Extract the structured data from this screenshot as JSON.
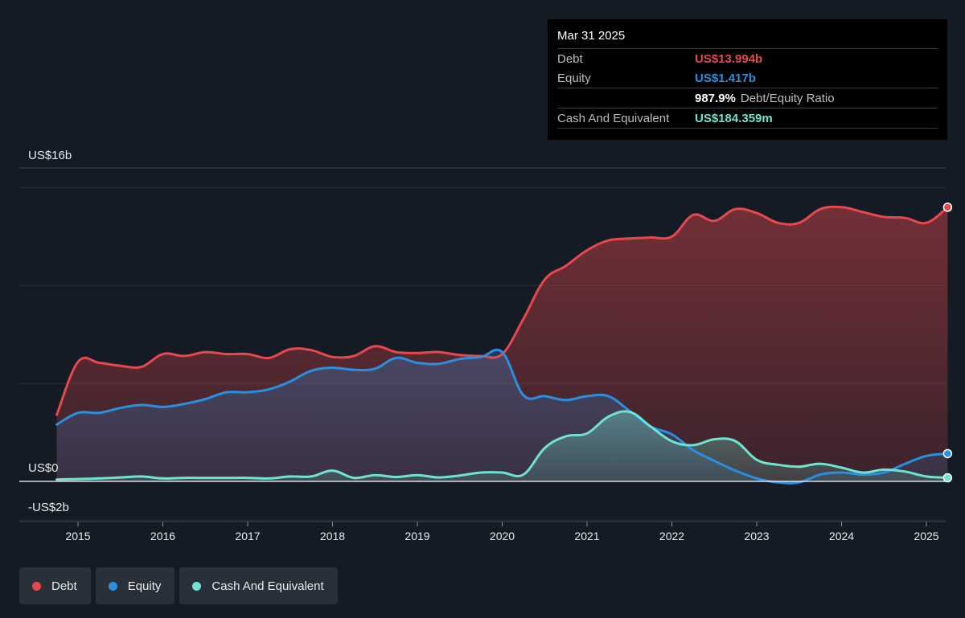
{
  "chart_data": {
    "type": "area",
    "x_start": 2014.75,
    "x_end": 2025.25,
    "xlim": [
      2014.5,
      2025.25
    ],
    "ylim": [
      -2,
      16
    ],
    "y_axis_labels": [
      {
        "value": 16,
        "label": "US$16b"
      },
      {
        "value": 0,
        "label": "US$0"
      },
      {
        "value": -2,
        "label": "-US$2b"
      }
    ],
    "gridlines": [
      16,
      15,
      10,
      5,
      0,
      -2
    ],
    "x_ticks": [
      2015,
      2016,
      2017,
      2018,
      2019,
      2020,
      2021,
      2022,
      2023,
      2024,
      2025
    ],
    "series": [
      {
        "name": "Debt",
        "color": "#e5484d",
        "values": [
          3.4,
          6.1,
          6.05,
          5.9,
          5.85,
          6.5,
          6.4,
          6.6,
          6.5,
          6.5,
          6.3,
          6.75,
          6.7,
          6.35,
          6.4,
          6.9,
          6.6,
          6.55,
          6.6,
          6.45,
          6.4,
          6.5,
          8.3,
          10.3,
          11,
          11.8,
          12.3,
          12.4,
          12.45,
          12.5,
          13.6,
          13.3,
          13.9,
          13.7,
          13.2,
          13.2,
          13.9,
          14,
          13.75,
          13.5,
          13.45,
          13.2,
          13.994
        ]
      },
      {
        "name": "Equity",
        "color": "#2b8fe0",
        "values": [
          2.9,
          3.5,
          3.5,
          3.75,
          3.9,
          3.8,
          3.95,
          4.2,
          4.55,
          4.55,
          4.7,
          5.1,
          5.65,
          5.8,
          5.7,
          5.75,
          6.3,
          6.05,
          6.0,
          6.25,
          6.35,
          6.6,
          4.4,
          4.35,
          4.15,
          4.35,
          4.35,
          3.6,
          2.8,
          2.4,
          1.6,
          1.05,
          0.55,
          0.15,
          -0.05,
          -0.05,
          0.35,
          0.45,
          0.35,
          0.45,
          0.9,
          1.3,
          1.417
        ]
      },
      {
        "name": "Cash And Equivalent",
        "color": "#6fe3cf",
        "values": [
          0.1,
          0.12,
          0.15,
          0.2,
          0.25,
          0.15,
          0.18,
          0.18,
          0.18,
          0.18,
          0.15,
          0.25,
          0.25,
          0.55,
          0.18,
          0.32,
          0.22,
          0.32,
          0.2,
          0.3,
          0.45,
          0.45,
          0.35,
          1.7,
          2.3,
          2.45,
          3.3,
          3.55,
          2.8,
          2.05,
          1.85,
          2.15,
          2.05,
          1.1,
          0.85,
          0.75,
          0.9,
          0.7,
          0.45,
          0.6,
          0.5,
          0.25,
          0.184
        ]
      }
    ]
  },
  "tooltip": {
    "date": "Mar 31 2025",
    "rows": [
      {
        "label": "Debt",
        "value": "US$13.994b",
        "color": "#e5484d"
      },
      {
        "label": "Equity",
        "value": "US$1.417b",
        "color": "#2b8fe0"
      },
      {
        "label": "",
        "value": "987.9%",
        "extra": "Debt/Equity Ratio",
        "color": "#ffffff"
      },
      {
        "label": "Cash And Equivalent",
        "value": "US$184.359m",
        "color": "#6fe3cf"
      }
    ]
  },
  "legend": [
    {
      "label": "Debt",
      "color": "#e5484d"
    },
    {
      "label": "Equity",
      "color": "#2b8fe0"
    },
    {
      "label": "Cash And Equivalent",
      "color": "#6fe3cf"
    }
  ]
}
